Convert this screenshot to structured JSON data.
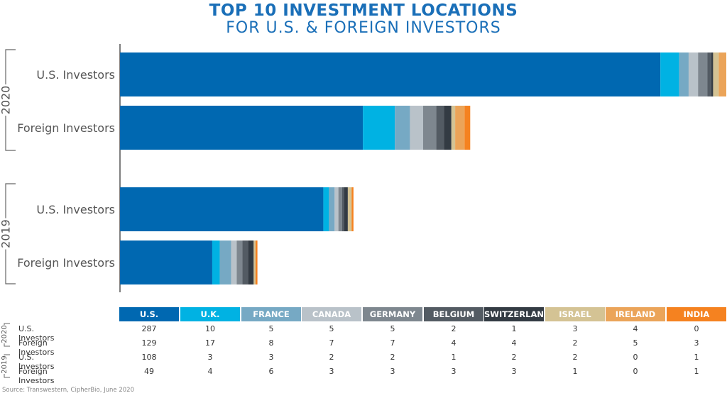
{
  "title": "TOP 10 INVESTMENT LOCATIONS",
  "subtitle": "FOR U.S. & FOREIGN INVESTORS",
  "source": "Source: Transwestern, CipherBio, June 2020",
  "chart_data": {
    "type": "bar",
    "orientation": "horizontal",
    "stacked": true,
    "groups": [
      {
        "year": "2020",
        "rows": [
          "U.S. Investors",
          "Foreign Investors"
        ]
      },
      {
        "year": "2019",
        "rows": [
          "U.S. Investors",
          "Foreign Investors"
        ]
      }
    ],
    "series": [
      {
        "name": "U.S.",
        "color": "#0068b1",
        "values": [
          287,
          129,
          108,
          49
        ]
      },
      {
        "name": "U.K.",
        "color": "#00b2e3",
        "values": [
          10,
          17,
          3,
          4
        ]
      },
      {
        "name": "FRANCE",
        "color": "#76a9c4",
        "values": [
          5,
          8,
          3,
          6
        ]
      },
      {
        "name": "CANADA",
        "color": "#b9c2c9",
        "values": [
          5,
          7,
          2,
          3
        ]
      },
      {
        "name": "GERMANY",
        "color": "#7e878f",
        "values": [
          5,
          7,
          2,
          3
        ]
      },
      {
        "name": "BELGIUM",
        "color": "#535b63",
        "values": [
          2,
          4,
          1,
          3
        ]
      },
      {
        "name": "SWITZERLAND",
        "color": "#333b43",
        "values": [
          1,
          4,
          2,
          3
        ]
      },
      {
        "name": "ISRAEL",
        "color": "#d4c394",
        "values": [
          3,
          2,
          2,
          1
        ]
      },
      {
        "name": "IRELAND",
        "color": "#eba459",
        "values": [
          4,
          5,
          0,
          0
        ]
      },
      {
        "name": "INDIA",
        "color": "#f58220",
        "values": [
          0,
          3,
          1,
          1
        ]
      }
    ]
  }
}
